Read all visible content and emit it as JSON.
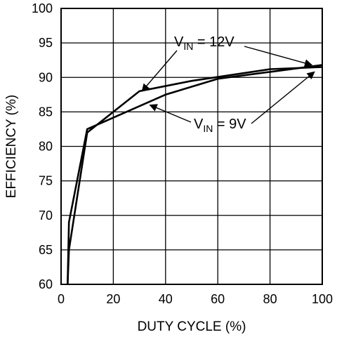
{
  "chart_data": {
    "type": "line",
    "xlabel": "DUTY CYCLE (%)",
    "ylabel": "EFFICIENCY (%)",
    "xlim": [
      0,
      100
    ],
    "ylim": [
      60,
      100
    ],
    "xticks": [
      0,
      20,
      40,
      60,
      80,
      100
    ],
    "yticks": [
      60,
      65,
      70,
      75,
      80,
      85,
      90,
      95,
      100
    ],
    "grid": true,
    "series": [
      {
        "name": "V_IN = 12V",
        "x": [
          2.5,
          3.0,
          10.0,
          30.0,
          50.0,
          80.0,
          100.0
        ],
        "y": [
          60,
          65,
          82.0,
          88.0,
          89.5,
          91.2,
          91.5
        ]
      },
      {
        "name": "V_IN = 9V",
        "x": [
          2.5,
          3.0,
          10.0,
          40.0,
          60.0,
          80.0,
          100.0
        ],
        "y": [
          60,
          69,
          82.5,
          87.5,
          89.8,
          90.8,
          91.8
        ]
      }
    ],
    "annotations": [
      {
        "id": "v12",
        "prefix": "V",
        "subscript": "IN",
        "suffix": " = 12V",
        "arrows_to": [
          [
            31.0,
            88.0
          ],
          [
            96.0,
            91.8
          ]
        ]
      },
      {
        "id": "v9",
        "prefix": "V",
        "subscript": "IN",
        "suffix": " = 9V",
        "arrows_to": [
          [
            34.0,
            86.0
          ],
          [
            97.0,
            90.8
          ]
        ]
      }
    ]
  }
}
